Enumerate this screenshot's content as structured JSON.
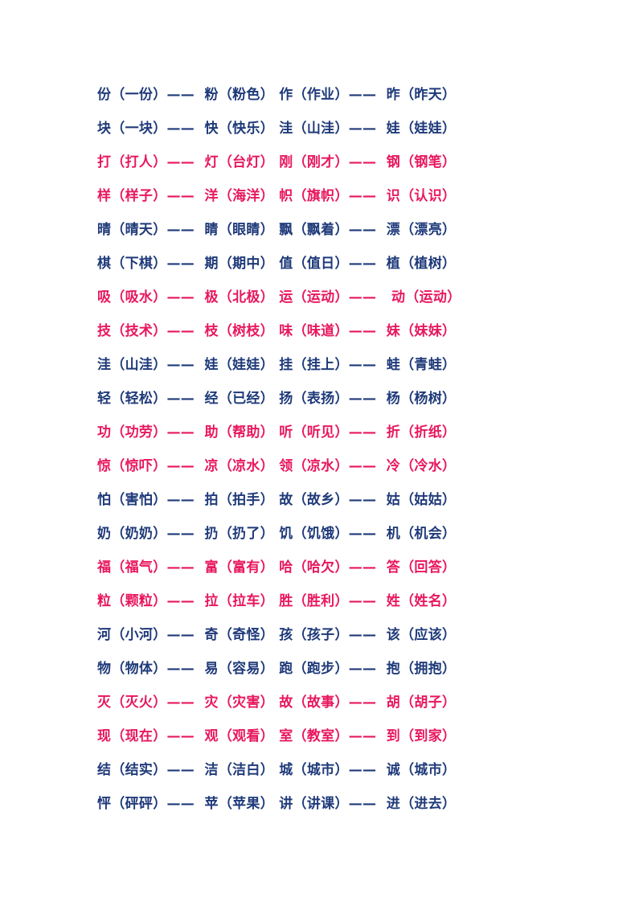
{
  "colors": {
    "blue": "#1f3a7a",
    "red": "#e8175d"
  },
  "rows": [
    {
      "text": "份（一份）——  粉（粉色） 作（作业）——  昨（昨天）",
      "color": "blue"
    },
    {
      "text": "块（一块）——  快（快乐） 洼（山洼）——  娃（娃娃）",
      "color": "blue"
    },
    {
      "text": "打（打人）——  灯（台灯） 刚（刚才）——  钢（钢笔）",
      "color": "red"
    },
    {
      "text": "样（样子）——  洋（海洋） 帜（旗帜）——  识（认识）",
      "color": "red"
    },
    {
      "text": "晴（晴天）——  睛（眼睛） 飘（飘着）——  漂（漂亮）",
      "color": "blue"
    },
    {
      "text": "棋（下棋）——  期（期中） 值（值日）——  植（植树）",
      "color": "blue"
    },
    {
      "text": "吸（吸水）——  极（北极） 运（运动）——   动（运动）",
      "color": "red"
    },
    {
      "text": "技（技术）——  枝（树枝） 味（味道）——  妹（妹妹）",
      "color": "red"
    },
    {
      "text": "洼（山洼）——  娃（娃娃） 挂（挂上）——  蛙（青蛙）",
      "color": "blue"
    },
    {
      "text": "轻（轻松）——  经（已经） 扬（表扬）——  杨（杨树）",
      "color": "blue"
    },
    {
      "text": "功（功劳）——  助（帮助） 听（听见）——  折（折纸）",
      "color": "red"
    },
    {
      "text": "惊（惊吓）——  凉（凉水） 领（凉水）——  冷（冷水）",
      "color": "red"
    },
    {
      "text": "怕（害怕）——  拍（拍手） 故（故乡）——  姑（姑姑）",
      "color": "blue"
    },
    {
      "text": "奶（奶奶）——  扔（扔了） 饥（饥饿）——  机（机会）",
      "color": "blue"
    },
    {
      "text": "福（福气）——  富（富有） 哈（哈欠）——  答（回答）",
      "color": "red"
    },
    {
      "text": "粒（颗粒）——  拉（拉车） 胜（胜利）——  姓（姓名）",
      "color": "red"
    },
    {
      "text": "河（小河）——  奇（奇怪） 孩（孩子）——  该（应该）",
      "color": "blue"
    },
    {
      "text": "物（物体）——  易（容易） 跑（跑步）——  抱（拥抱）",
      "color": "blue"
    },
    {
      "text": "灭（灭火）——  灾（灾害） 故（故事）——  胡（胡子）",
      "color": "red"
    },
    {
      "text": "现（现在）——  观（观看） 室（教室）——  到（到家）",
      "color": "red"
    },
    {
      "text": "结（结实）——  洁（洁白） 城（城市）——  诚（城市）",
      "color": "blue"
    },
    {
      "text": "怦（砰砰）——  苹（苹果） 讲（讲课）——  进（进去）",
      "color": "blue"
    }
  ]
}
